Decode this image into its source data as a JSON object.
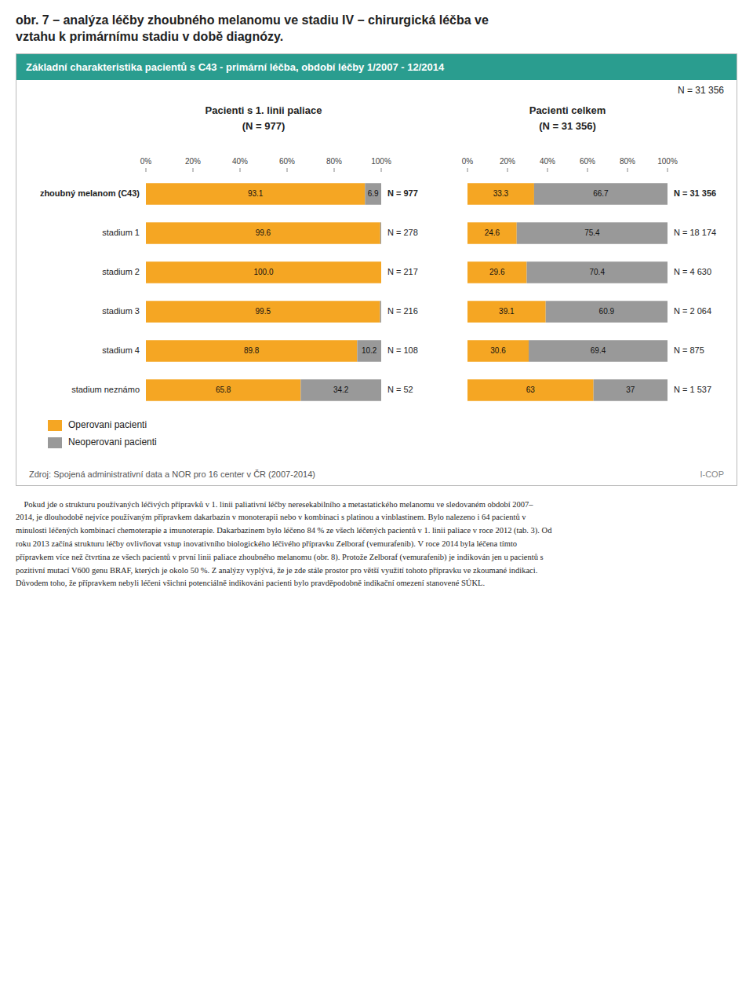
{
  "title": "obr. 7 – analýza léčby zhoubného melanomu ve stadiu IV – chirurgická léčba ve\nvztahu k primárnímu stadiu v době diagnózy.",
  "subtitle": "Základní charakteristika pacientů s C43 - primární léčba, období léčby 1/2007 - 12/2014",
  "note": "N = 31 356",
  "source": "Zdroj: Spojená administrativní data a NOR pro 16 center v ČR (2007-2014)",
  "credit": "I-COP",
  "body_text": [
    "    Pokud jde o strukturu používaných léčivých přípravků v 1. linii paliativní léčby neresekabilního a metastatického melanomu ve sledovaném období 2007–",
    "2014, je dlouhodobě nejvíce používaným přípravkem dakarbazin v monoterapii nebo v kombinaci s platinou a vinblastinem. Bylo nalezeno i 64 pacientů v",
    "minulosti léčených kombinací chemoterapie a imunoterapie. Dakarbazinem bylo léčeno 84 % ze všech léčených pacientů v 1. linii paliace v roce 2012 (tab. 3). Od",
    "roku 2013 začíná strukturu léčby ovlivňovat vstup inovativního biologického léčivého přípravku Zelboraf (vemurafenib). V roce 2014 byla léčena tímto",
    "přípravkem více než čtvrtina ze všech pacientů v první linii paliace zhoubného melanomu (obr. 8). Protože Zelboraf (vemurafenib) je indikován jen u pacientů s",
    "pozitivní mutací V600 genu BRAF, kterých je okolo 50 %. Z analýzy vyplývá, že je zde stále prostor pro větší využití tohoto přípravku ve zkoumané indikaci.",
    "Důvodem toho, že přípravkem nebyli léčeni všichni potenciálně indikováni pacienti bylo pravděpodobně indikační omezení stanovené SÚKL."
  ],
  "chart_data": [
    {
      "type": "bar",
      "orientation": "horizontal",
      "stacked": true,
      "title": "Pacienti s 1. linii paliace",
      "subtitle": "(N = 977)",
      "categories": [
        "zhoubný melanom (C43)",
        "stadium 1",
        "stadium 2",
        "stadium 3",
        "stadium 4",
        "stadium neznámo"
      ],
      "series": [
        {
          "name": "Operovani pacienti",
          "color": "#F5A623",
          "values": [
            93.1,
            99.6,
            100.0,
            99.5,
            89.8,
            65.8
          ],
          "value_labels": [
            "93.1",
            "99.6",
            "100.0",
            "99.5",
            "89.8",
            "65.8"
          ]
        },
        {
          "name": "Neoperovani pacienti",
          "color": "#999999",
          "values": [
            6.9,
            0.4,
            0.0,
            0.5,
            10.2,
            34.2
          ],
          "value_labels": [
            "6.9",
            null,
            null,
            null,
            "10.2",
            "34.2"
          ]
        }
      ],
      "annotations": [
        "N = 977",
        "N = 278",
        "N = 217",
        "N = 216",
        "N = 108",
        "N = 52"
      ],
      "xlim": [
        0,
        100
      ],
      "xticks": [
        {
          "value": 0,
          "label": "0%"
        },
        {
          "value": 20,
          "label": "20%"
        },
        {
          "value": 40,
          "label": "40%"
        },
        {
          "value": 60,
          "label": "60%"
        },
        {
          "value": 80,
          "label": "80%"
        },
        {
          "value": 100,
          "label": "100%"
        }
      ],
      "grid": false,
      "data_labels": true,
      "legend": "bottom"
    },
    {
      "type": "bar",
      "orientation": "horizontal",
      "stacked": true,
      "title": "Pacienti celkem",
      "subtitle": "(N = 31 356)",
      "series": [
        {
          "color": "#F5A623",
          "values": [
            33.3,
            24.6,
            29.6,
            39.1,
            30.6,
            63.0
          ]
        },
        {
          "color": "#999999",
          "values": [
            66.7,
            75.4,
            70.4,
            60.9,
            69.4,
            37.0
          ]
        }
      ],
      "annotations": [
        "N = 31 356",
        "N = 18 174",
        "N = 4 630",
        "N = 2 064",
        "N = 875",
        "N = 1 537"
      ],
      "xlim": [
        0,
        100
      ],
      "xticks": [
        {
          "value": 0,
          "label": "0%"
        },
        {
          "value": 20,
          "label": "20%"
        },
        {
          "value": 40,
          "label": "40%"
        },
        {
          "value": 60,
          "label": "60%"
        },
        {
          "value": 80,
          "label": "80%"
        },
        {
          "value": 100,
          "label": "100%"
        }
      ],
      "grid": false,
      "data_labels": true,
      "tick_labels": "x"
    }
  ]
}
